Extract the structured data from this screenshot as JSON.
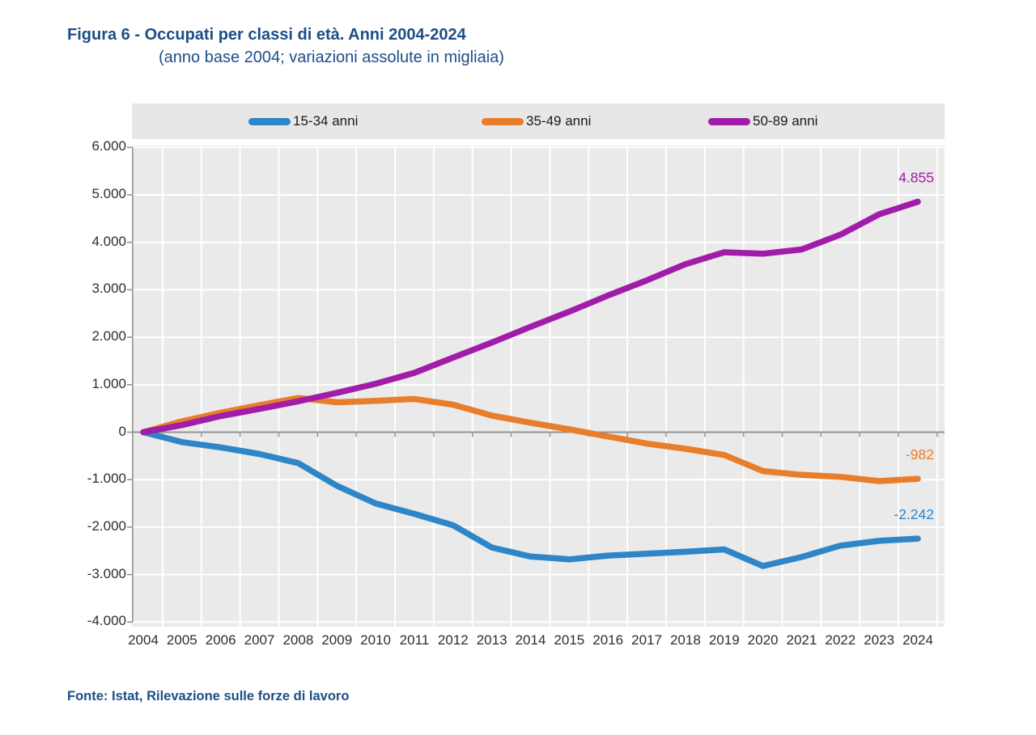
{
  "figure": {
    "title": "Figura 6 - Occupati per classi di età. Anni 2004-2024",
    "subtitle": "(anno base 2004; variazioni assolute in migliaia)",
    "source": "Fonte: Istat, Rilevazione sulle forze di lavoro"
  },
  "colors": {
    "title_blue": "#1c4e87",
    "plot_background": "#eaeaea",
    "legend_background": "#e7e7e7",
    "gridline": "#ffffff",
    "axis_gray": "#949494",
    "series_blue": "#2e86c8",
    "series_orange": "#e87d2b",
    "series_purple": "#a11ca8"
  },
  "chart_data": {
    "type": "line",
    "title": "Occupati per classi di età. Anni 2004-2024 (anno base 2004; variazioni assolute in migliaia)",
    "x": [
      2004,
      2005,
      2006,
      2007,
      2008,
      2009,
      2010,
      2011,
      2012,
      2013,
      2014,
      2015,
      2016,
      2017,
      2018,
      2019,
      2020,
      2021,
      2022,
      2023,
      2024
    ],
    "series": [
      {
        "name": "15-34 anni",
        "color": "#2e86c8",
        "end_label": "-2.242",
        "values": [
          0,
          -210,
          -320,
          -460,
          -650,
          -1130,
          -1500,
          -1720,
          -1960,
          -2430,
          -2620,
          -2680,
          -2600,
          -2560,
          -2520,
          -2470,
          -2820,
          -2630,
          -2390,
          -2290,
          -2242
        ]
      },
      {
        "name": "35-49 anni",
        "color": "#e87d2b",
        "end_label": "-982",
        "values": [
          0,
          230,
          410,
          570,
          720,
          630,
          660,
          700,
          580,
          350,
          200,
          60,
          -90,
          -240,
          -350,
          -480,
          -820,
          -900,
          -940,
          -1030,
          -982
        ]
      },
      {
        "name": "50-89 anni",
        "color": "#a11ca8",
        "end_label": "4.855",
        "values": [
          0,
          150,
          340,
          490,
          650,
          830,
          1020,
          1250,
          1570,
          1890,
          2220,
          2540,
          2880,
          3200,
          3540,
          3790,
          3760,
          3850,
          4160,
          4590,
          4855
        ]
      }
    ],
    "y_ticks": [
      "6.000",
      "5.000",
      "4.000",
      "3.000",
      "2.000",
      "1.000",
      "0",
      "-1.000",
      "-2.000",
      "-3.000",
      "-4.000"
    ],
    "y_tick_values": [
      6000,
      5000,
      4000,
      3000,
      2000,
      1000,
      0,
      -1000,
      -2000,
      -3000,
      -4000
    ],
    "ylim": [
      -4000,
      6000
    ],
    "grid": true,
    "legend_position": "top"
  }
}
